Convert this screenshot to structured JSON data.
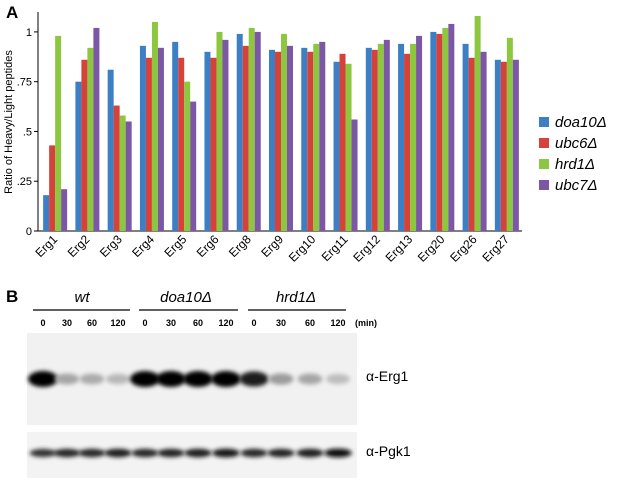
{
  "panel_a_letter": "A",
  "panel_b_letter": "B",
  "colors": {
    "doa10": "#3d7fc4",
    "ubc6": "#d6423a",
    "hrd1": "#8dc63f",
    "ubc7": "#7b57a5"
  },
  "chart_data": {
    "type": "bar",
    "title": "",
    "xlabel": "",
    "ylabel": "Ratio of Heavy/Light peptides",
    "ylim": [
      0,
      1.1
    ],
    "yticks": [
      "0",
      ".25",
      ".5",
      ".75",
      "1"
    ],
    "ytick_values": [
      0,
      0.25,
      0.5,
      0.75,
      1.0
    ],
    "categories": [
      "Erg1",
      "Erg2",
      "Erg3",
      "Erg4",
      "Erg5",
      "Erg6",
      "Erg8",
      "Erg9",
      "Erg10",
      "Erg11",
      "Erg12",
      "Erg13",
      "Erg20",
      "Erg26",
      "Erg27"
    ],
    "series": [
      {
        "name": "doa10Δ",
        "color": "#3d7fc4",
        "values": [
          0.18,
          0.75,
          0.81,
          0.93,
          0.95,
          0.9,
          0.99,
          0.91,
          0.92,
          0.85,
          0.92,
          0.94,
          1.0,
          0.94,
          0.86
        ]
      },
      {
        "name": "ubc6Δ",
        "color": "#d6423a",
        "values": [
          0.43,
          0.86,
          0.63,
          0.87,
          0.87,
          0.87,
          0.93,
          0.9,
          0.9,
          0.89,
          0.91,
          0.89,
          0.99,
          0.87,
          0.85
        ]
      },
      {
        "name": "hrd1Δ",
        "color": "#8dc63f",
        "values": [
          0.98,
          0.92,
          0.58,
          1.05,
          0.75,
          1.0,
          1.02,
          0.99,
          0.94,
          0.84,
          0.94,
          0.94,
          1.02,
          1.08,
          0.97
        ]
      },
      {
        "name": "ubc7Δ",
        "color": "#7b57a5",
        "values": [
          0.21,
          1.02,
          0.55,
          0.92,
          0.65,
          0.96,
          1.0,
          0.93,
          0.95,
          0.56,
          0.96,
          0.98,
          1.04,
          0.9,
          0.86
        ]
      }
    ],
    "legend_position": "right"
  },
  "blot": {
    "groups": [
      {
        "label": "wt",
        "times": [
          "0",
          "30",
          "60",
          "120"
        ]
      },
      {
        "label": "doa10Δ",
        "times": [
          "0",
          "30",
          "60",
          "120"
        ]
      },
      {
        "label": "hrd1Δ",
        "times": [
          "0",
          "30",
          "60",
          "120"
        ]
      }
    ],
    "time_unit": "(min)",
    "blot_labels": [
      "α-Erg1",
      "α-Pgk1"
    ],
    "erg1_band_intensity": [
      1.0,
      0.3,
      0.28,
      0.22,
      1.0,
      1.0,
      1.0,
      1.0,
      0.9,
      0.35,
      0.3,
      0.2
    ],
    "pgk1_band_intensity": [
      0.8,
      0.85,
      0.85,
      0.9,
      0.85,
      0.88,
      0.9,
      0.92,
      0.85,
      0.88,
      0.9,
      0.95
    ]
  }
}
